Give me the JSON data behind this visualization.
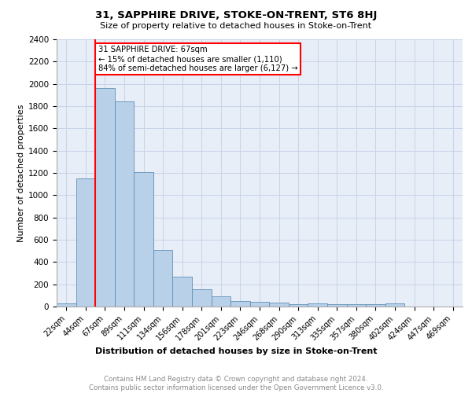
{
  "title": "31, SAPPHIRE DRIVE, STOKE-ON-TRENT, ST6 8HJ",
  "subtitle": "Size of property relative to detached houses in Stoke-on-Trent",
  "xlabel": "Distribution of detached houses by size in Stoke-on-Trent",
  "ylabel": "Number of detached properties",
  "categories": [
    "22sqm",
    "44sqm",
    "67sqm",
    "89sqm",
    "111sqm",
    "134sqm",
    "156sqm",
    "178sqm",
    "201sqm",
    "223sqm",
    "246sqm",
    "268sqm",
    "290sqm",
    "313sqm",
    "335sqm",
    "357sqm",
    "380sqm",
    "402sqm",
    "424sqm",
    "447sqm",
    "469sqm"
  ],
  "values": [
    30,
    1150,
    1960,
    1840,
    1210,
    510,
    270,
    155,
    90,
    50,
    45,
    35,
    20,
    25,
    20,
    20,
    20,
    25,
    0,
    0,
    0
  ],
  "bar_color": "#b8d0e8",
  "bar_edge_color": "#6090b8",
  "red_line_index": 2,
  "annotation_text": "31 SAPPHIRE DRIVE: 67sqm\n← 15% of detached houses are smaller (1,110)\n84% of semi-detached houses are larger (6,127) →",
  "annotation_box_color": "white",
  "annotation_box_edge_color": "red",
  "red_line_color": "red",
  "ylim": [
    0,
    2400
  ],
  "yticks": [
    0,
    200,
    400,
    600,
    800,
    1000,
    1200,
    1400,
    1600,
    1800,
    2000,
    2200,
    2400
  ],
  "grid_color": "#c8d4e8",
  "background_color": "#e8eef8",
  "footer_line1": "Contains HM Land Registry data © Crown copyright and database right 2024.",
  "footer_line2": "Contains public sector information licensed under the Open Government Licence v3.0."
}
